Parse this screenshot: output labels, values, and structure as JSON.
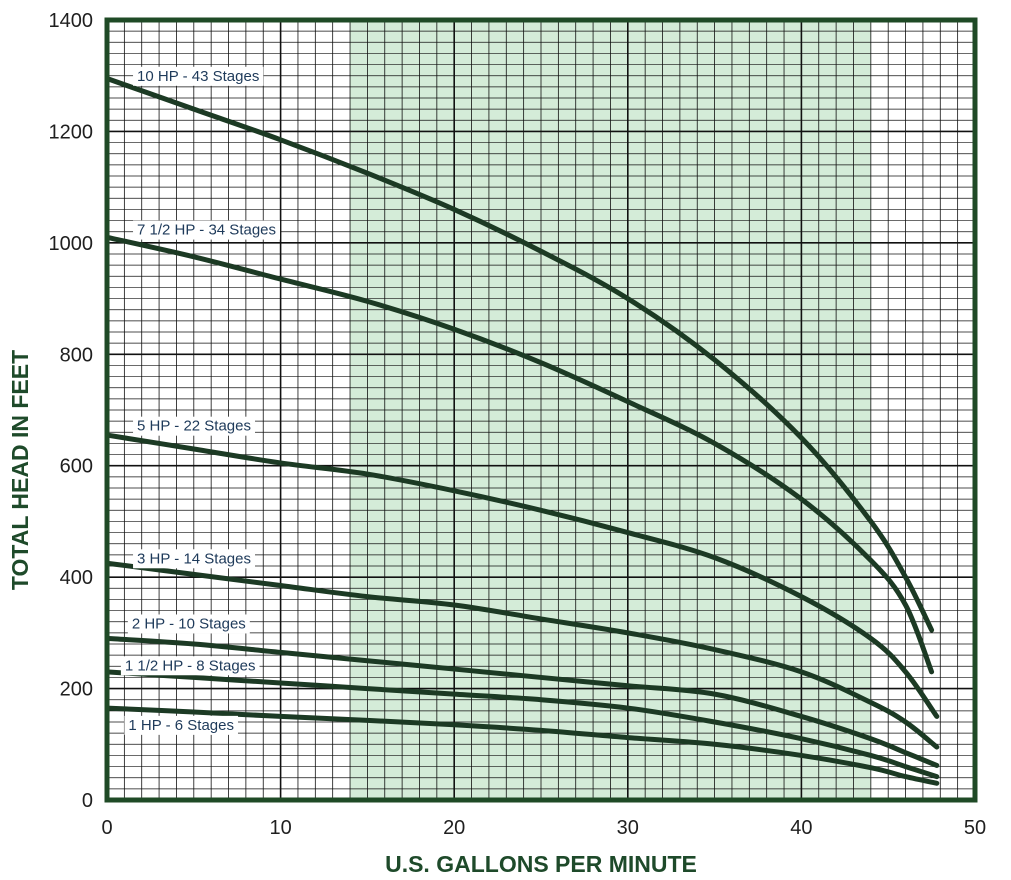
{
  "chart_data": {
    "type": "line",
    "title": "",
    "xlabel": "U.S. GALLONS PER MINUTE",
    "ylabel": "TOTAL HEAD IN FEET",
    "xlim": [
      0,
      50
    ],
    "ylim": [
      0,
      1400
    ],
    "xticks": [
      "0",
      "10",
      "20",
      "30",
      "40",
      "50"
    ],
    "yticks": [
      "0",
      "200",
      "400",
      "600",
      "800",
      "1000",
      "1200",
      "1400"
    ],
    "grid": true,
    "shaded_region": {
      "x_from": 14,
      "x_to": 44,
      "color": "#d4ecd8"
    },
    "line_color": "#1c3a24",
    "frame_color": "#1f4a26",
    "series": [
      {
        "name": "10 HP - 43 Stages",
        "points": [
          [
            0,
            1295
          ],
          [
            5,
            1240
          ],
          [
            10,
            1185
          ],
          [
            15,
            1125
          ],
          [
            20,
            1060
          ],
          [
            25,
            985
          ],
          [
            30,
            900
          ],
          [
            35,
            790
          ],
          [
            40,
            650
          ],
          [
            44,
            500
          ],
          [
            46,
            400
          ],
          [
            47.5,
            305
          ]
        ]
      },
      {
        "name": "7 1/2 HP - 34 Stages",
        "points": [
          [
            0,
            1010
          ],
          [
            5,
            975
          ],
          [
            10,
            935
          ],
          [
            15,
            895
          ],
          [
            20,
            845
          ],
          [
            25,
            785
          ],
          [
            30,
            715
          ],
          [
            35,
            640
          ],
          [
            40,
            540
          ],
          [
            44,
            430
          ],
          [
            46,
            350
          ],
          [
            47.5,
            230
          ]
        ]
      },
      {
        "name": "5 HP - 22 Stages",
        "points": [
          [
            0,
            655
          ],
          [
            5,
            630
          ],
          [
            10,
            605
          ],
          [
            15,
            585
          ],
          [
            20,
            555
          ],
          [
            25,
            520
          ],
          [
            30,
            480
          ],
          [
            35,
            435
          ],
          [
            40,
            365
          ],
          [
            44,
            290
          ],
          [
            46,
            230
          ],
          [
            47.8,
            150
          ]
        ]
      },
      {
        "name": "3 HP - 14 Stages",
        "points": [
          [
            0,
            425
          ],
          [
            5,
            405
          ],
          [
            10,
            385
          ],
          [
            15,
            365
          ],
          [
            20,
            350
          ],
          [
            25,
            325
          ],
          [
            30,
            300
          ],
          [
            35,
            270
          ],
          [
            40,
            230
          ],
          [
            44,
            175
          ],
          [
            46,
            140
          ],
          [
            47.8,
            95
          ]
        ]
      },
      {
        "name": "2 HP - 10 Stages",
        "points": [
          [
            0,
            290
          ],
          [
            5,
            280
          ],
          [
            10,
            265
          ],
          [
            15,
            250
          ],
          [
            20,
            235
          ],
          [
            25,
            220
          ],
          [
            30,
            205
          ],
          [
            35,
            190
          ],
          [
            40,
            150
          ],
          [
            44,
            110
          ],
          [
            46,
            85
          ],
          [
            47.8,
            62
          ]
        ]
      },
      {
        "name": "1 1/2 HP - 8 Stages",
        "points": [
          [
            0,
            230
          ],
          [
            5,
            220
          ],
          [
            10,
            210
          ],
          [
            15,
            200
          ],
          [
            20,
            190
          ],
          [
            25,
            180
          ],
          [
            30,
            165
          ],
          [
            35,
            140
          ],
          [
            40,
            110
          ],
          [
            44,
            80
          ],
          [
            46,
            60
          ],
          [
            47.8,
            42
          ]
        ]
      },
      {
        "name": "1 HP - 6 Stages",
        "points": [
          [
            0,
            165
          ],
          [
            5,
            158
          ],
          [
            10,
            150
          ],
          [
            15,
            143
          ],
          [
            20,
            135
          ],
          [
            25,
            125
          ],
          [
            30,
            112
          ],
          [
            35,
            100
          ],
          [
            40,
            80
          ],
          [
            44,
            58
          ],
          [
            46,
            42
          ],
          [
            47.8,
            30
          ]
        ]
      }
    ],
    "label_anchor_x": [
      1.5,
      1.5,
      1.5,
      1.5,
      1.2,
      0.8,
      1.0
    ],
    "label_anchor_y": [
      1298,
      1022,
      670,
      432,
      315,
      240,
      133
    ]
  }
}
